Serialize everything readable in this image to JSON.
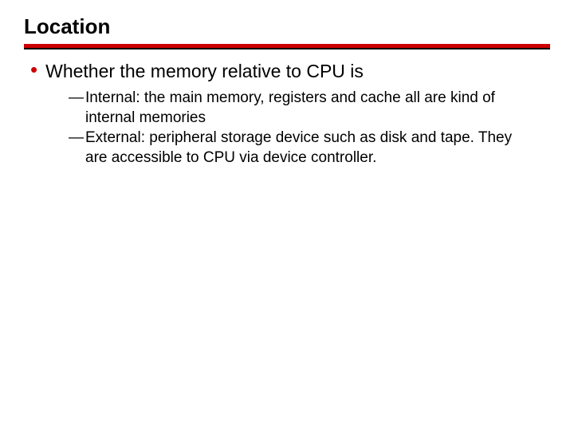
{
  "slide": {
    "title": "Location",
    "rule_color_top": "#cc0000",
    "rule_color_bottom": "#000000",
    "bullet_color": "#cc0000",
    "text_color": "#000000",
    "background_color": "#ffffff",
    "title_fontsize": 26,
    "body_fontsize": 23,
    "sub_fontsize": 19,
    "bullets": [
      {
        "text": "Whether the memory relative to CPU is",
        "subs": [
          {
            "dash": "—",
            "text": "Internal: the main memory, registers and cache all are kind of internal memories"
          },
          {
            "dash": "—",
            "text": "External: peripheral storage device such as disk and tape. They are accessible to CPU via device controller."
          }
        ]
      }
    ]
  }
}
